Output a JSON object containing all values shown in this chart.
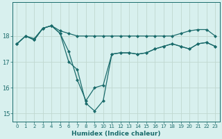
{
  "xlabel": "Humidex (Indice chaleur)",
  "background_color": "#d8f0ee",
  "line_color": "#1a6b6b",
  "grid_color": "#c0d8d0",
  "xlim": [
    -0.5,
    23.5
  ],
  "ylim": [
    14.7,
    19.3
  ],
  "yticks": [
    15,
    16,
    17,
    18
  ],
  "xticks": [
    0,
    1,
    2,
    3,
    4,
    5,
    6,
    7,
    8,
    9,
    10,
    11,
    12,
    13,
    14,
    15,
    16,
    17,
    18,
    19,
    20,
    21,
    22,
    23
  ],
  "line1_x": [
    0,
    1,
    2,
    3,
    4,
    5,
    6,
    7,
    8,
    9,
    10,
    11,
    12,
    13,
    14,
    15,
    16,
    17,
    18,
    19,
    20,
    21,
    22,
    23
  ],
  "line1_y": [
    17.7,
    18.0,
    17.9,
    18.3,
    18.4,
    18.2,
    18.1,
    18.0,
    18.0,
    18.0,
    18.0,
    18.0,
    18.0,
    18.0,
    18.0,
    18.0,
    18.0,
    18.0,
    18.0,
    18.1,
    18.2,
    18.25,
    18.25,
    18.0
  ],
  "line2_x": [
    0,
    1,
    2,
    3,
    4,
    5,
    6,
    7,
    8,
    9,
    10,
    11,
    12,
    13,
    14,
    15,
    16,
    17,
    18,
    19,
    20,
    21,
    22,
    23
  ],
  "line2_y": [
    17.7,
    18.0,
    17.85,
    18.3,
    18.4,
    18.1,
    17.0,
    16.7,
    15.4,
    15.1,
    15.5,
    17.3,
    17.35,
    17.35,
    17.3,
    17.35,
    17.5,
    17.6,
    17.7,
    17.6,
    17.5,
    17.7,
    17.75,
    17.6
  ],
  "line3_x": [
    0,
    1,
    2,
    3,
    4,
    5,
    6,
    7,
    8,
    9,
    10,
    11,
    12,
    13,
    14,
    15,
    16,
    17,
    18,
    19,
    20,
    21,
    22,
    23
  ],
  "line3_y": [
    17.7,
    18.0,
    17.85,
    18.3,
    18.4,
    18.1,
    17.4,
    16.3,
    15.5,
    16.0,
    16.1,
    17.3,
    17.35,
    17.35,
    17.3,
    17.35,
    17.5,
    17.6,
    17.7,
    17.6,
    17.5,
    17.7,
    17.75,
    17.6
  ]
}
